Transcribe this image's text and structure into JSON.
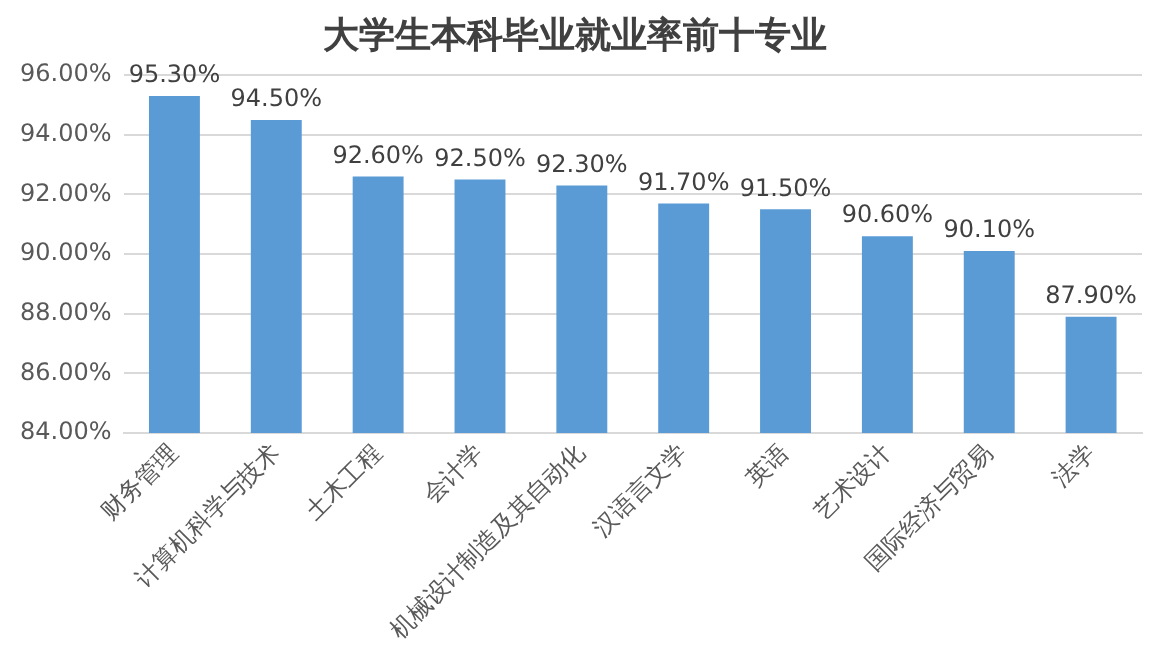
{
  "chart_data": {
    "type": "bar",
    "title": "大学生本科毕业就业率前十专业",
    "categories": [
      "财务管理",
      "计算机科学与技术",
      "土木工程",
      "会计学",
      "机械设计制造及其自动化",
      "汉语言文学",
      "英语",
      "艺术设计",
      "国际经济与贸易",
      "法学"
    ],
    "values": [
      95.3,
      94.5,
      92.6,
      92.5,
      92.3,
      91.7,
      91.5,
      90.6,
      90.1,
      87.9
    ],
    "value_labels": [
      "95.30%",
      "94.50%",
      "92.60%",
      "92.50%",
      "92.30%",
      "91.70%",
      "91.50%",
      "90.60%",
      "90.10%",
      "87.90%"
    ],
    "color": "#5b9bd5",
    "ylim": [
      84,
      96
    ],
    "yticks": [
      {
        "value": 84,
        "label": "84.00%"
      },
      {
        "value": 86,
        "label": "86.00%"
      },
      {
        "value": 88,
        "label": "88.00%"
      },
      {
        "value": 90,
        "label": "90.00%"
      },
      {
        "value": 92,
        "label": "92.00%"
      },
      {
        "value": 94,
        "label": "94.00%"
      },
      {
        "value": 96,
        "label": "96.00%"
      }
    ],
    "grid": "y"
  }
}
